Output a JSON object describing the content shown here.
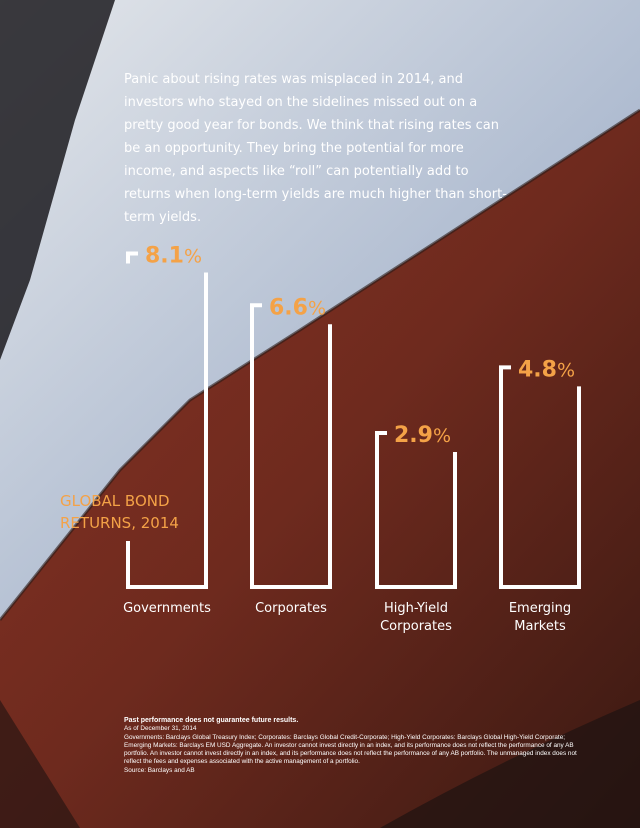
{
  "intro_text": "Panic about rising rates was misplaced in 2014, and investors who stayed on the sidelines missed out on a pretty good year for bonds. We think that rising rates can be an opportunity. They bring the potential for more income, and aspects like “roll” can potentially add to returns when long-term yields are much higher than short-term yields.",
  "colors": {
    "accent": "#f4a247",
    "text": "#ffffff",
    "hull_red": "#7a2a1e",
    "hull_light": "#c9d3e0"
  },
  "chart_data": {
    "type": "bar",
    "title": [
      "GLOBAL BOND",
      "RETURNS, 2014"
    ],
    "unit": "%",
    "categories": [
      [
        "Governments"
      ],
      [
        "Corporates"
      ],
      [
        "High-Yield",
        "Corporates"
      ],
      [
        "Emerging",
        "Markets"
      ]
    ],
    "values": [
      8.1,
      6.6,
      2.9,
      4.8
    ]
  },
  "footnotes": {
    "bold_line": "Past performance does not guarantee future results.",
    "date_line": "As of December 31, 2014",
    "indexes": "Governments: Barclays Global Treasury Index; Corporates: Barclays Global Credit-Corporate; High-Yield Corporates: Barclays Global High-Yield Corporate; Emerging Markets: Barclays EM USD Aggregate. An investor cannot invest directly in an index, and its performance does not reflect the performance of any AB portfolio. An investor cannot invest directly in an index, and its performance does not reflect the performance of any AB portfolio. The unmanaged index does not reflect the fees and expenses associated with the active management of a portfolio.",
    "source": "Source: Barclays and AB"
  }
}
